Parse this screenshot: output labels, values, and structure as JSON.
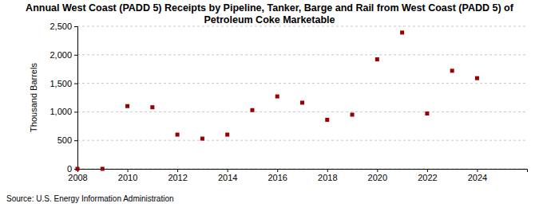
{
  "chart_data": {
    "type": "scatter",
    "title": "Annual West Coast (PADD 5) Receipts by Pipeline, Tanker, Barge and Rail from West Coast (PADD 5) of Petroleum Coke Marketable",
    "y_label": "Thousand Barrels",
    "source": "Source: U.S. Energy Information Administration",
    "x": [
      2008,
      2009,
      2010,
      2011,
      2012,
      2013,
      2014,
      2015,
      2016,
      2017,
      2018,
      2019,
      2020,
      2021,
      2022,
      2023,
      2024
    ],
    "values": [
      0,
      0,
      1100,
      1080,
      600,
      530,
      600,
      1030,
      1270,
      1160,
      860,
      950,
      1920,
      2390,
      970,
      1720,
      1590
    ],
    "color": "#990000",
    "marker": "square",
    "xlim": [
      2008,
      2026
    ],
    "xticks": [
      2008,
      2010,
      2012,
      2014,
      2016,
      2018,
      2020,
      2022,
      2024
    ],
    "ylim": [
      0,
      2500
    ],
    "yticks": [
      0,
      500,
      {
        "value": 1000,
        "label": "1,000"
      },
      {
        "value": 1500,
        "label": "1,500"
      },
      {
        "value": 2000,
        "label": "2,000"
      },
      {
        "value": 2500,
        "label": "2,500"
      }
    ],
    "grid": true
  }
}
